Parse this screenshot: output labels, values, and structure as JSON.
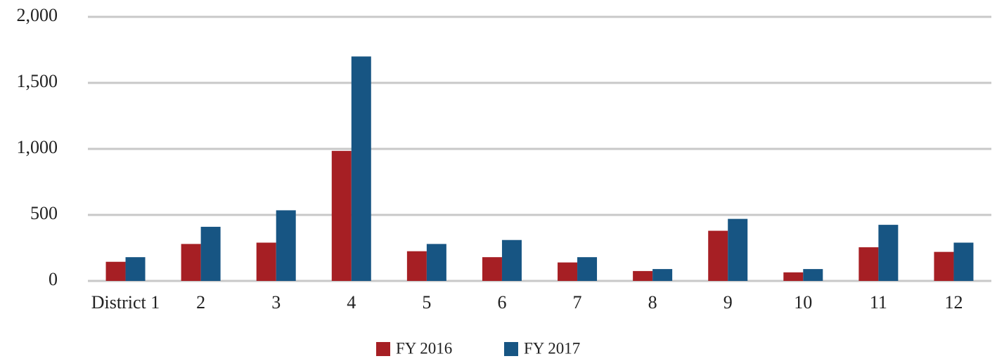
{
  "chart_data": {
    "type": "bar",
    "categories": [
      "District 1",
      "2",
      "3",
      "4",
      "5",
      "6",
      "7",
      "8",
      "9",
      "10",
      "11",
      "12"
    ],
    "series": [
      {
        "name": "FY 2016",
        "color": "#a61f24",
        "values": [
          145,
          280,
          290,
          985,
          225,
          180,
          140,
          75,
          380,
          65,
          255,
          220
        ]
      },
      {
        "name": "FY 2017",
        "color": "#175583",
        "values": [
          180,
          410,
          535,
          1700,
          280,
          310,
          180,
          90,
          470,
          90,
          425,
          290
        ]
      }
    ],
    "ylim": [
      0,
      2000
    ],
    "yticks": [
      0,
      500,
      {
        "value": 1000,
        "label": "1,000"
      },
      {
        "value": 1500,
        "label": "1,500"
      },
      {
        "value": 2000,
        "label": "2,000"
      }
    ],
    "grid": true,
    "legend": "bottom"
  }
}
